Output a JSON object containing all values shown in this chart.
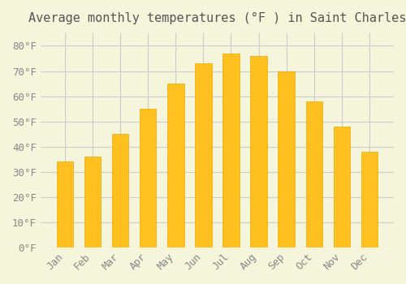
{
  "months": [
    "Jan",
    "Feb",
    "Mar",
    "Apr",
    "May",
    "Jun",
    "Jul",
    "Aug",
    "Sep",
    "Oct",
    "Nov",
    "Dec"
  ],
  "values": [
    34,
    36,
    45,
    55,
    65,
    73,
    77,
    76,
    70,
    58,
    48,
    38
  ],
  "bar_color": "#FFC020",
  "bar_edge_color": "#E8A800",
  "title": "Average monthly temperatures (°F ) in Saint Charles",
  "ylim": [
    0,
    85
  ],
  "ytick_step": 10,
  "background_color": "#F5F5DC",
  "grid_color": "#CCCCCC",
  "title_fontsize": 11,
  "tick_fontsize": 9,
  "font_family": "monospace"
}
